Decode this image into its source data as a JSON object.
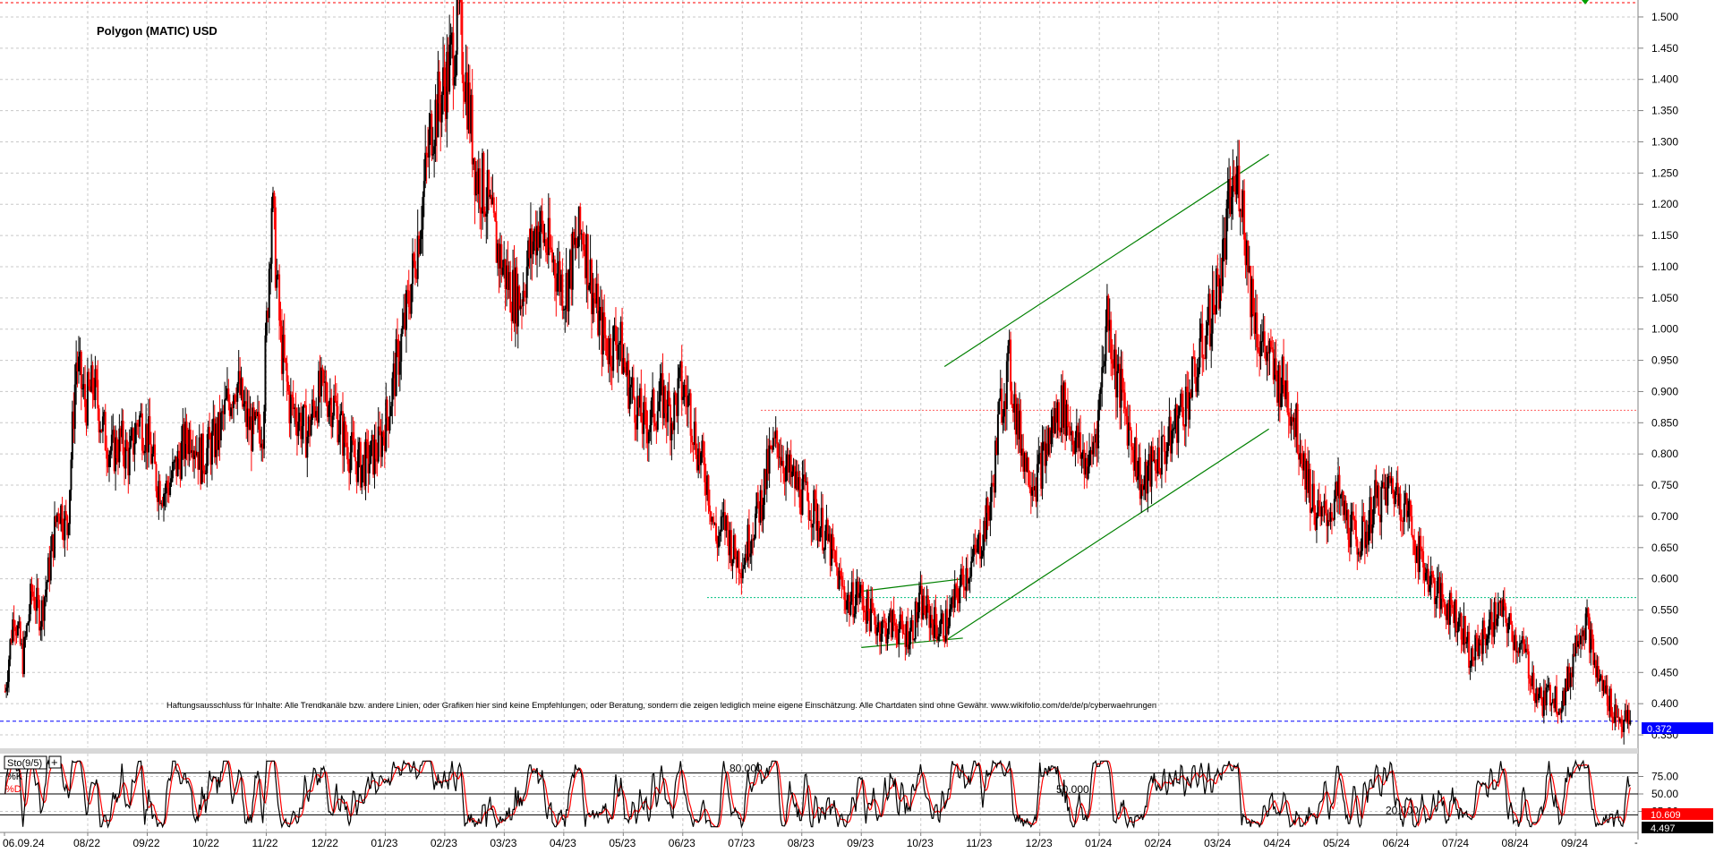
{
  "chart_data": [
    {
      "type": "candlestick",
      "title": "Polygon (MATIC) USD",
      "ylim": [
        0.33,
        1.52
      ],
      "y_ticks": [
        "1.500",
        "1.450",
        "1.400",
        "1.350",
        "1.300",
        "1.250",
        "1.200",
        "1.150",
        "1.100",
        "1.050",
        "1.000",
        "0.950",
        "0.900",
        "0.850",
        "0.800",
        "0.750",
        "0.700",
        "0.650",
        "0.600",
        "0.550",
        "0.500",
        "0.450",
        "0.400",
        "0.350"
      ],
      "x_ticks": [
        "06.09.24",
        "08/22",
        "09/22",
        "10/22",
        "11/22",
        "12/22",
        "01/23",
        "02/23",
        "03/23",
        "04/23",
        "05/23",
        "06/23",
        "07/23",
        "08/23",
        "09/23",
        "10/23",
        "11/23",
        "12/23",
        "01/24",
        "02/24",
        "03/24",
        "04/24",
        "05/24",
        "06/24",
        "07/24",
        "08/24",
        "09/24"
      ],
      "grid": true,
      "bar_colors": {
        "up": "#000000",
        "down": "#ff0000"
      },
      "series": [
        {
          "values": [
            0.42,
            0.55,
            0.47,
            0.58,
            0.54,
            0.62,
            0.72,
            0.68,
            0.95,
            0.88,
            0.91,
            0.84,
            0.8,
            0.82,
            0.79,
            0.86,
            0.83,
            0.76,
            0.74,
            0.77,
            0.81,
            0.84,
            0.79,
            0.81,
            0.83,
            0.88,
            0.92,
            0.86,
            0.83,
            0.85,
            1.21,
            0.98,
            0.88,
            0.86,
            0.83,
            0.89,
            0.9,
            0.88,
            0.83,
            0.8,
            0.78,
            0.79,
            0.81,
            0.86,
            0.94,
            1.01,
            1.1,
            1.21,
            1.33,
            1.37,
            1.42,
            1.5,
            1.38,
            1.25,
            1.22,
            1.15,
            1.1,
            1.06,
            1.05,
            1.12,
            1.17,
            1.13,
            1.1,
            1.06,
            1.12,
            1.16,
            1.07,
            1.0,
            0.97,
            0.99,
            0.92,
            0.88,
            0.84,
            0.87,
            0.89,
            0.86,
            0.91,
            0.88,
            0.8,
            0.76,
            0.66,
            0.69,
            0.64,
            0.63,
            0.68,
            0.72,
            0.79,
            0.82,
            0.77,
            0.75,
            0.73,
            0.71,
            0.68,
            0.64,
            0.59,
            0.56,
            0.58,
            0.55,
            0.53,
            0.52,
            0.53,
            0.51,
            0.52,
            0.56,
            0.54,
            0.52,
            0.53,
            0.57,
            0.61,
            0.63,
            0.67,
            0.73,
            0.88,
            0.94,
            0.84,
            0.78,
            0.76,
            0.8,
            0.85,
            0.88,
            0.84,
            0.8,
            0.78,
            0.86,
            1.03,
            0.93,
            0.87,
            0.81,
            0.74,
            0.78,
            0.8,
            0.82,
            0.86,
            0.89,
            0.93,
            0.99,
            1.04,
            1.11,
            1.22,
            1.24,
            1.08,
            0.99,
            0.96,
            0.92,
            0.91,
            0.86,
            0.8,
            0.73,
            0.69,
            0.71,
            0.73,
            0.69,
            0.66,
            0.67,
            0.72,
            0.73,
            0.75,
            0.73,
            0.7,
            0.64,
            0.61,
            0.58,
            0.56,
            0.55,
            0.52,
            0.47,
            0.5,
            0.52,
            0.55,
            0.53,
            0.5,
            0.48,
            0.43,
            0.4,
            0.42,
            0.4,
            0.44,
            0.52,
            0.53,
            0.45,
            0.42,
            0.39,
            0.37
          ]
        },
        {
          "name": "%K"
        },
        {
          "name": "%D"
        }
      ],
      "annotations": [
        "Haftungsausschluss für Inhalte: Alle Trendkanäle bzw. andere Linien, oder Grafiken hier sind keine Empfehlungen, oder Beratung, sondern die zeigen lediglich meine eigene Einschätzung. Alle Chartdaten sind ohne Gewähr. www.wikifolio.com/de/de/p/cyberwaehrungen"
      ],
      "last_price": "0.372",
      "horizontal_levels": [
        0.57,
        0.87,
        0.372
      ],
      "trendlines": [
        {
          "color": "#008000",
          "from": [
            "10/23",
            0.47
          ],
          "to": [
            "10/23",
            0.52
          ]
        },
        {
          "color": "#008000",
          "from": [
            "11/23",
            0.94
          ],
          "to": [
            "04/24",
            1.28
          ]
        },
        {
          "color": "#008000",
          "from": [
            "11/23",
            0.5
          ],
          "to": [
            "04/24",
            0.84
          ]
        }
      ]
    },
    {
      "type": "line",
      "indicator": "Sto(9/5)",
      "legend": [
        "%K",
        "%D"
      ],
      "ylim": [
        0,
        100
      ],
      "y_ticks": [
        "75.00",
        "50.00",
        "25.00"
      ],
      "levels": [
        {
          "value": 80,
          "label": "80.000"
        },
        {
          "value": 50,
          "label": "50.000"
        },
        {
          "value": 20,
          "label": "20.000"
        }
      ],
      "current_values": [
        "10.609",
        "4.497"
      ],
      "colors": {
        "k": "#000000",
        "d": "#ff0000"
      }
    }
  ]
}
